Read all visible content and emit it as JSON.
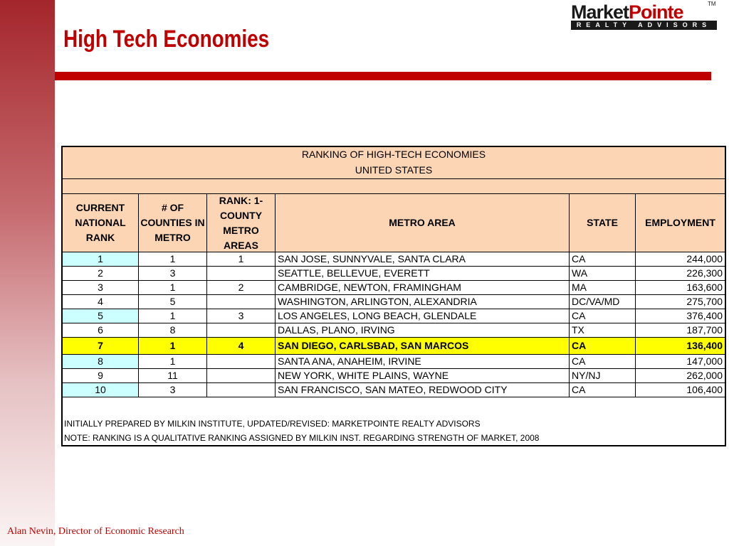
{
  "slide": {
    "title": "High Tech Economies",
    "footer": "Alan Nevin, Director of Economic Research"
  },
  "logo": {
    "name_dark": "Market",
    "name_red": "Pointe",
    "trademark": "TM",
    "tagline": "REALTY ADVISORS"
  },
  "table": {
    "caption": "RANKING OF HIGH-TECH ECONOMIES",
    "subcaption": "UNITED STATES",
    "headers": {
      "national_rank": "CURRENT NATIONAL RANK",
      "counties": "# OF COUNTIES IN METRO",
      "single_county_rank": "RANK: 1-COUNTY METRO AREAS",
      "metro_area": "METRO AREA",
      "state": "STATE",
      "employment": "EMPLOYMENT"
    },
    "rows": [
      {
        "rank": "1",
        "counties": "1",
        "single_rank": "1",
        "metro": "SAN JOSE, SUNNYVALE, SANTA CLARA",
        "state": "CA",
        "employment": "244,000"
      },
      {
        "rank": "2",
        "counties": "3",
        "single_rank": "",
        "metro": "SEATTLE, BELLEVUE, EVERETT",
        "state": "WA",
        "employment": "226,300"
      },
      {
        "rank": "3",
        "counties": "1",
        "single_rank": "2",
        "metro": "CAMBRIDGE, NEWTON, FRAMINGHAM",
        "state": "MA",
        "employment": "163,600"
      },
      {
        "rank": "4",
        "counties": "5",
        "single_rank": "",
        "metro": "WASHINGTON, ARLINGTON, ALEXANDRIA",
        "state": "DC/VA/MD",
        "employment": "275,700"
      },
      {
        "rank": "5",
        "counties": "1",
        "single_rank": "3",
        "metro": "LOS ANGELES, LONG BEACH, GLENDALE",
        "state": "CA",
        "employment": "376,400"
      },
      {
        "rank": "6",
        "counties": "8",
        "single_rank": "",
        "metro": "DALLAS, PLANO, IRVING",
        "state": "TX",
        "employment": "187,700"
      },
      {
        "rank": "7",
        "counties": "1",
        "single_rank": "4",
        "metro": "SAN DIEGO, CARLSBAD, SAN MARCOS",
        "state": "CA",
        "employment": "136,400"
      },
      {
        "rank": "8",
        "counties": "1",
        "single_rank": "",
        "metro": "SANTA ANA, ANAHEIM, IRVINE",
        "state": "CA",
        "employment": "147,000"
      },
      {
        "rank": "9",
        "counties": "11",
        "single_rank": "",
        "metro": "NEW YORK, WHITE PLAINS, WAYNE",
        "state": "NY/NJ",
        "employment": "262,000"
      },
      {
        "rank": "10",
        "counties": "3",
        "single_rank": "",
        "metro": "SAN FRANCISCO, SAN MATEO, REDWOOD CITY",
        "state": "CA",
        "employment": "106,400"
      }
    ],
    "notes": [
      "INITIALLY PREPARED BY MILKIN INSTITUTE, UPDATED/REVISED: MARKETPOINTE REALTY ADVISORS",
      "NOTE: RANKING IS A QUALITATIVE RANKING ASSIGNED BY MILKIN INST. REGARDING STRENGTH OF MARKET, 2008"
    ]
  },
  "colors": {
    "accent_red": "#c00000",
    "header_fill": "#fcd5b4",
    "rank_cell_fill": "#ccffff",
    "highlight_row": "#ffff00"
  }
}
